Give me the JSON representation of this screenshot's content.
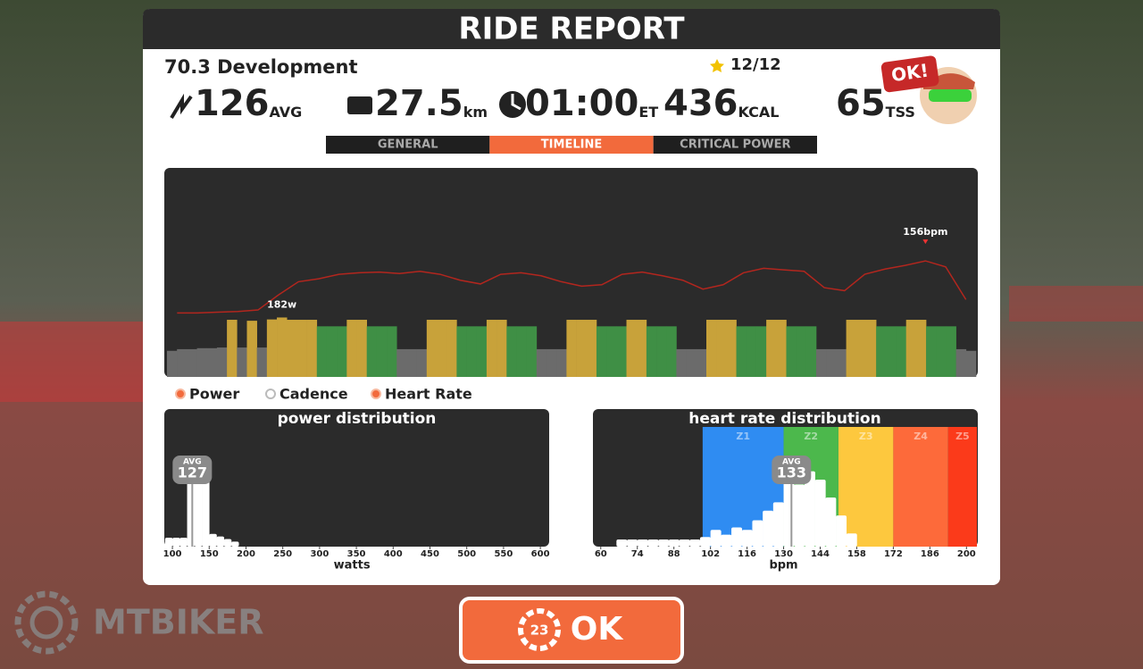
{
  "header": {
    "title": "RIDE REPORT"
  },
  "workout": {
    "name": "70.3 Development",
    "rating": "12/12"
  },
  "stats": [
    {
      "value": "126",
      "unit": "AVG"
    },
    {
      "value": "27.5",
      "unit": "km"
    },
    {
      "value": "01:00",
      "unit": "ET"
    },
    {
      "value": "436",
      "unit": "KCAL"
    },
    {
      "value": "65",
      "unit": "TSS"
    }
  ],
  "badge": "OK!",
  "tabs": [
    "GENERAL",
    "TIMELINE",
    "CRITICAL POWER"
  ],
  "active_tab": 1,
  "legend": [
    {
      "name": "Power",
      "color": "#f26a3c",
      "on": true
    },
    {
      "name": "Cadence",
      "color": "#ffffff",
      "on": false
    },
    {
      "name": "Heart Rate",
      "color": "#f26a3c",
      "on": true
    }
  ],
  "chart_data": [
    {
      "type": "timeline",
      "power": {
        "values": [
          80,
          85,
          85,
          88,
          88,
          90,
          175,
          90,
          172,
          90,
          176,
          182,
          175,
          175,
          175,
          155,
          155,
          155,
          175,
          175,
          155,
          155,
          155,
          85,
          85,
          85,
          175,
          175,
          175,
          155,
          155,
          155,
          175,
          175,
          155,
          155,
          155,
          85,
          85,
          85,
          175,
          175,
          175,
          155,
          155,
          155,
          175,
          175,
          155,
          155,
          155,
          85,
          85,
          85,
          175,
          175,
          175,
          155,
          155,
          155,
          175,
          175,
          155,
          155,
          155,
          85,
          85,
          85,
          175,
          175,
          175,
          155,
          155,
          155,
          175,
          175,
          155,
          155,
          155,
          85,
          80
        ],
        "zones": [
          {
            "from": 0,
            "color": "#6b6b6b"
          },
          {
            "from": 140,
            "color": "#3f8f45"
          },
          {
            "from": 170,
            "color": "#c8a23a"
          }
        ]
      },
      "heart_rate": {
        "color": "#b3261e",
        "axis": "y2",
        "values": [
          86,
          86,
          87,
          88,
          90,
          110,
          128,
          132,
          138,
          140,
          141,
          139,
          142,
          138,
          130,
          125,
          138,
          140,
          136,
          128,
          122,
          124,
          138,
          141,
          136,
          130,
          118,
          124,
          140,
          146,
          144,
          142,
          120,
          116,
          138,
          145,
          150,
          156,
          148,
          104
        ]
      },
      "ylim": [
        0,
        640
      ],
      "y2lim": [
        0,
        281
      ],
      "annotations": [
        "182w",
        "156bpm"
      ]
    },
    {
      "type": "histogram",
      "title": "power distribution",
      "x_label": "watts",
      "color": "#ffffff",
      "bins": [
        90,
        100,
        110,
        120,
        130,
        140,
        150,
        160,
        170,
        180,
        190
      ],
      "counts": [
        7,
        7,
        7,
        67,
        67,
        67,
        10,
        8,
        6,
        4
      ],
      "xlim": [
        89,
        612
      ],
      "ylim": [
        0,
        100
      ],
      "xticks": [
        100,
        150,
        200,
        250,
        300,
        350,
        400,
        450,
        500,
        550,
        600
      ],
      "avg": {
        "label": "AVG",
        "value": 127
      }
    },
    {
      "type": "histogram",
      "title": "heart rate distribution",
      "x_label": "bpm",
      "color": "#ffffff",
      "bins": [
        66,
        70,
        74,
        78,
        82,
        86,
        90,
        94,
        98,
        102,
        106,
        110,
        114,
        118,
        122,
        126,
        130,
        134,
        138,
        142,
        146,
        150,
        154,
        158
      ],
      "counts": [
        6,
        6,
        6,
        6,
        6,
        6,
        6,
        6,
        8,
        14,
        10,
        16,
        14,
        22,
        30,
        37,
        74,
        52,
        63,
        56,
        41,
        26,
        11
      ],
      "xlim": [
        57,
        204
      ],
      "ylim": [
        0,
        100
      ],
      "xticks": [
        60,
        74,
        88,
        102,
        116,
        130,
        144,
        158,
        172,
        186,
        200
      ],
      "zones": [
        {
          "name": "Z1",
          "from": 99,
          "to": 130,
          "color": "#2f8cf2"
        },
        {
          "name": "Z2",
          "from": 130,
          "to": 151,
          "color": "#4cb84c"
        },
        {
          "name": "Z3",
          "from": 151,
          "to": 172,
          "color": "#fdc83e"
        },
        {
          "name": "Z4",
          "from": 172,
          "to": 193,
          "color": "#fd6a3a"
        },
        {
          "name": "Z5",
          "from": 193,
          "to": 204,
          "color": "#fb3a1a"
        }
      ],
      "avg": {
        "label": "AVG",
        "value": 133
      }
    }
  ],
  "button": {
    "countdown": "23",
    "label": "OK"
  },
  "watermark": "MTBIKER"
}
